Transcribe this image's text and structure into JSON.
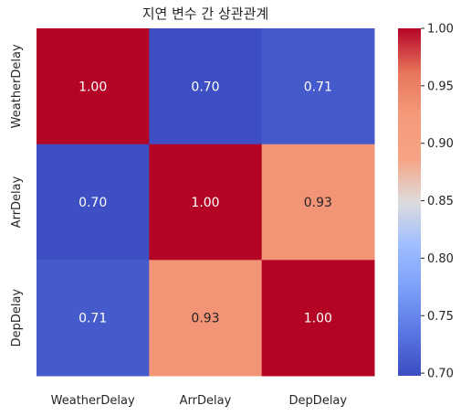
{
  "chart_data": {
    "type": "heatmap",
    "title": "지연 변수 간 상관관계",
    "x_categories": [
      "WeatherDelay",
      "ArrDelay",
      "DepDelay"
    ],
    "y_categories": [
      "WeatherDelay",
      "ArrDelay",
      "DepDelay"
    ],
    "values": [
      [
        1.0,
        0.7,
        0.71
      ],
      [
        0.7,
        1.0,
        0.93
      ],
      [
        0.71,
        0.93,
        1.0
      ]
    ],
    "cell_labels": [
      [
        "1.00",
        "0.70",
        "0.71"
      ],
      [
        "0.70",
        "1.00",
        "0.93"
      ],
      [
        "0.71",
        "0.93",
        "1.00"
      ]
    ],
    "colormap": "coolwarm",
    "vmin": 0.6977,
    "vmax": 1.0,
    "colorbar_ticks": [
      0.7,
      0.75,
      0.8,
      0.85,
      0.9,
      0.95,
      1.0
    ],
    "colorbar_tick_labels": [
      "0.70",
      "0.75",
      "0.80",
      "0.85",
      "0.90",
      "0.95",
      "1.00"
    ]
  }
}
